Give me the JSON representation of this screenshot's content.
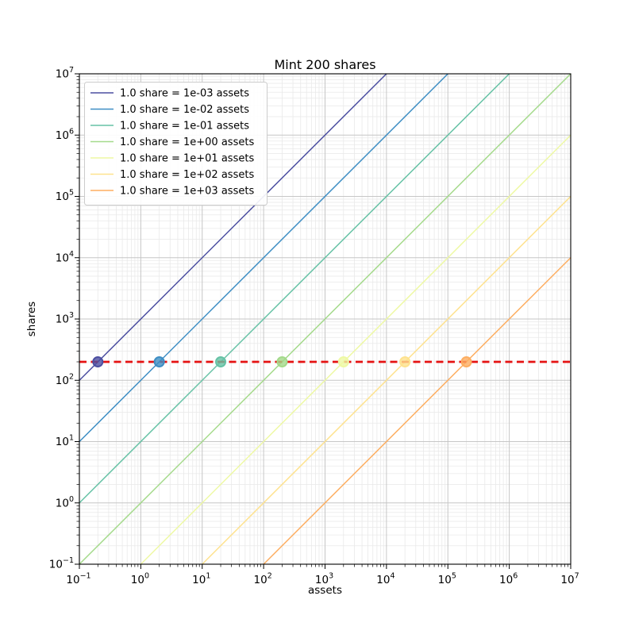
{
  "figure": {
    "background": "#ffffff"
  },
  "chart_data": {
    "type": "line",
    "title": "Mint 200 shares",
    "xlabel": "assets",
    "ylabel": "shares",
    "xscale": "log",
    "yscale": "log",
    "xlim": [
      0.1,
      10000000
    ],
    "ylim": [
      0.1,
      10000000
    ],
    "shares_minted": 200,
    "x_tick_exponents": [
      -1,
      0,
      1,
      2,
      3,
      4,
      5,
      6,
      7
    ],
    "y_tick_exponents": [
      -1,
      0,
      1,
      2,
      3,
      4,
      5,
      6,
      7
    ],
    "grid": {
      "major_color": "#c6c6c6",
      "minor_color": "#e9e9e9",
      "minor_on": true
    },
    "frame_color": "#000000",
    "reference_line": {
      "shares": 200,
      "color": "#e51212",
      "style": "dashed"
    },
    "legend": {
      "position": "upper-left",
      "border_color": "#cccccc",
      "background": "#ffffff"
    },
    "series": [
      {
        "label": "1.0 share = 1e-03 assets",
        "assets_per_share": 0.001,
        "color": "#4c4fa1",
        "marker": {
          "assets": 0.2,
          "shares": 200
        }
      },
      {
        "label": "1.0 share = 1e-02 assets",
        "assets_per_share": 0.01,
        "color": "#3e8ec4",
        "marker": {
          "assets": 2,
          "shares": 200
        }
      },
      {
        "label": "1.0 share = 1e-01 assets",
        "assets_per_share": 0.1,
        "color": "#66c2a5",
        "marker": {
          "assets": 20,
          "shares": 200
        }
      },
      {
        "label": "1.0 share = 1e+00 assets",
        "assets_per_share": 1,
        "color": "#a4da8b",
        "marker": {
          "assets": 200,
          "shares": 200
        }
      },
      {
        "label": "1.0 share = 1e+01 assets",
        "assets_per_share": 10,
        "color": "#eef9a4",
        "marker": {
          "assets": 2000,
          "shares": 200
        }
      },
      {
        "label": "1.0 share = 1e+02 assets",
        "assets_per_share": 100,
        "color": "#fee28e",
        "marker": {
          "assets": 20000,
          "shares": 200
        }
      },
      {
        "label": "1.0 share = 1e+03 assets",
        "assets_per_share": 1000,
        "color": "#fdae61",
        "marker": {
          "assets": 200000,
          "shares": 200
        }
      }
    ]
  }
}
